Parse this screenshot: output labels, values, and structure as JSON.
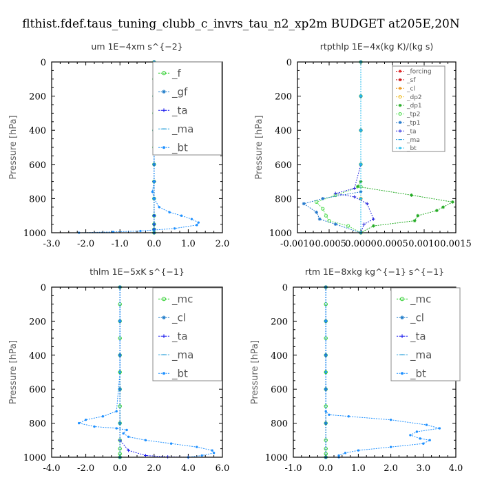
{
  "title": "flthist.fdef.taus_tuning_clubb_c_invrs_tau_n2_xp2m  BUDGET at205E,20N",
  "chart_data": [
    {
      "type": "line",
      "title": "um   1E−4xm s^{−2}",
      "ylabel": "Pressure [hPa]",
      "xlim": [
        -3,
        2
      ],
      "ylim": [
        1000,
        0
      ],
      "xticks": [
        "-3.0",
        "-2.0",
        "-1.0",
        "0.0",
        "1.0",
        "2.0"
      ],
      "xtick_values": [
        -3,
        -2,
        -1,
        0,
        1,
        2
      ],
      "yticks": [
        "0",
        "200",
        "400",
        "600",
        "800",
        "1000"
      ],
      "legend_placement": "top-right",
      "legend_font": 15,
      "series": [
        {
          "name": "_f",
          "color": "#22cc22",
          "marker": "circle",
          "x": [
            0.0,
            0.0,
            0.0,
            0.0,
            0.0,
            0.0,
            0.0,
            0.0,
            0.0,
            0.0,
            0.0,
            0.0,
            0.0
          ],
          "y": [
            0,
            100,
            200,
            300,
            400,
            500,
            600,
            700,
            800,
            900,
            950,
            980,
            1000
          ]
        },
        {
          "name": "_gf",
          "color": "#1e7bc8",
          "marker": "star",
          "x": [
            0.0,
            0.0,
            0.0,
            0.0,
            0.0,
            0.0,
            0.0,
            0.0,
            0.0,
            0.0,
            0.0,
            0.0,
            0.0
          ],
          "y": [
            0,
            100,
            200,
            300,
            400,
            500,
            600,
            700,
            800,
            900,
            950,
            980,
            1000
          ]
        },
        {
          "name": "_ta",
          "color": "#1a1aee",
          "marker": "plus",
          "x": [
            0.0,
            0.0,
            0.0,
            0.0,
            0.0,
            0.0,
            0.0,
            0.0,
            0.0,
            0.0
          ],
          "y": [
            0,
            200,
            400,
            600,
            700,
            800,
            900,
            950,
            980,
            1000
          ]
        },
        {
          "name": "_ma",
          "color": "#1e9bd8",
          "marker": "dash",
          "x": [
            0.0,
            0.0,
            0.0,
            0.0,
            0.0,
            0.0
          ],
          "y": [
            0,
            200,
            400,
            600,
            800,
            1000
          ]
        },
        {
          "name": "_bt",
          "color": "#1e90ff",
          "marker": "dot",
          "x": [
            0.0,
            0.0,
            0.0,
            0.0,
            -0.05,
            0.0,
            0.15,
            0.45,
            0.8,
            1.1,
            1.3,
            1.25,
            0.6,
            -0.4,
            -1.2,
            -2.2
          ],
          "y": [
            0,
            200,
            400,
            700,
            760,
            800,
            850,
            880,
            900,
            920,
            940,
            955,
            975,
            990,
            995,
            1000
          ]
        }
      ]
    },
    {
      "type": "line",
      "title": "rtpthlp   1E−4x(kg K)/(kg s)",
      "ylabel": "Pressure [hPa]",
      "xlim": [
        -0.001,
        0.0015
      ],
      "ylim": [
        1000,
        0
      ],
      "xticks": [
        "-0.0010",
        "-0.0005",
        "0.0000",
        "0.0005",
        "0.0010",
        "0.0015"
      ],
      "xtick_values": [
        -0.001,
        -0.0005,
        0,
        0.0005,
        0.001,
        0.0015
      ],
      "yticks": [
        "0",
        "200",
        "400",
        "600",
        "800",
        "1000"
      ],
      "legend_placement": "top-right",
      "legend_font": 9,
      "series": [
        {
          "name": "_forcing",
          "color": "#dd2222",
          "marker": "star",
          "x": [
            0,
            0,
            0,
            0,
            0,
            0
          ],
          "y": [
            0,
            200,
            400,
            600,
            800,
            1000
          ]
        },
        {
          "name": "_sf",
          "color": "#cc1111",
          "marker": "star",
          "x": [
            0,
            0,
            0,
            0,
            0,
            0
          ],
          "y": [
            0,
            200,
            400,
            600,
            800,
            1000
          ]
        },
        {
          "name": "_cl",
          "color": "#ee9922",
          "marker": "star",
          "x": [
            0,
            0,
            0,
            0,
            0,
            0
          ],
          "y": [
            0,
            200,
            400,
            600,
            800,
            1000
          ]
        },
        {
          "name": "_dp2",
          "color": "#eebb22",
          "marker": "circle",
          "x": [
            0,
            0,
            0,
            0,
            0,
            0
          ],
          "y": [
            0,
            200,
            400,
            600,
            800,
            1000
          ]
        },
        {
          "name": "_dp1",
          "color": "#22aa22",
          "marker": "star",
          "x": [
            0.0,
            0.0,
            0.0,
            0.0,
            0.0,
            -5e-05,
            0.0008,
            0.00145,
            0.0013,
            0.0012,
            0.0009,
            0.00085,
            0.0002,
            0.0
          ],
          "y": [
            0,
            200,
            400,
            600,
            700,
            730,
            780,
            820,
            850,
            870,
            900,
            930,
            960,
            1000
          ]
        },
        {
          "name": "_tp2",
          "color": "#55dd55",
          "marker": "circle",
          "x": [
            0.0,
            0.0,
            0.0,
            0.0,
            0.0,
            -0.0004,
            -0.0007,
            -0.0006,
            -0.00055,
            -0.0005,
            -0.0002,
            0.0
          ],
          "y": [
            0,
            200,
            400,
            600,
            730,
            780,
            820,
            860,
            900,
            930,
            960,
            1000
          ]
        },
        {
          "name": "_tp1",
          "color": "#2277cc",
          "marker": "star",
          "x": [
            0.0,
            0.0,
            0.0,
            0.0,
            0.0,
            -0.0006,
            -0.0009,
            -0.0007,
            -0.00065,
            -0.0004,
            0.0
          ],
          "y": [
            0,
            200,
            400,
            600,
            760,
            800,
            830,
            880,
            920,
            950,
            1000
          ]
        },
        {
          "name": "_ta",
          "color": "#2222dd",
          "marker": "plus",
          "x": [
            0.0,
            0.0,
            0.0,
            0.0,
            -0.0001,
            -0.0004,
            -0.0001,
            0.0001,
            0.0002,
            5e-05,
            0.0
          ],
          "y": [
            0,
            200,
            400,
            600,
            740,
            770,
            790,
            830,
            920,
            950,
            1000
          ]
        },
        {
          "name": "_ma",
          "color": "#2299dd",
          "marker": "dash",
          "x": [
            0,
            0,
            0,
            0,
            0,
            0
          ],
          "y": [
            0,
            200,
            400,
            600,
            800,
            1000
          ]
        },
        {
          "name": "_bt",
          "color": "#22bbee",
          "marker": "dot",
          "x": [
            0,
            0,
            0,
            0,
            0,
            0
          ],
          "y": [
            0,
            200,
            400,
            600,
            800,
            1000
          ]
        }
      ]
    },
    {
      "type": "line",
      "title": "thlm   1E−5xK s^{−1}",
      "ylabel": "Pressure [hPa]",
      "xlim": [
        -4,
        6
      ],
      "ylim": [
        1000,
        0
      ],
      "xticks": [
        "-4.0",
        "-2.0",
        "0.0",
        "2.0",
        "4.0",
        "6.0"
      ],
      "xtick_values": [
        -4,
        -2,
        0,
        2,
        4,
        6
      ],
      "yticks": [
        "0",
        "200",
        "400",
        "600",
        "800",
        "1000"
      ],
      "legend_placement": "top-right",
      "legend_font": 15,
      "series": [
        {
          "name": "_mc",
          "color": "#22cc22",
          "marker": "circle",
          "x": [
            0,
            0,
            0,
            0,
            0,
            0,
            0,
            0,
            0,
            0,
            0,
            0,
            0
          ],
          "y": [
            0,
            100,
            200,
            300,
            400,
            500,
            600,
            700,
            800,
            900,
            950,
            980,
            1000
          ]
        },
        {
          "name": "_cl",
          "color": "#1e7bc8",
          "marker": "star",
          "x": [
            0,
            0,
            0,
            0,
            0,
            0
          ],
          "y": [
            0,
            200,
            400,
            600,
            800,
            1000
          ]
        },
        {
          "name": "_ta",
          "color": "#1a1aee",
          "marker": "plus",
          "x": [
            0.0,
            0.0,
            0.0,
            0.0,
            0.0,
            0.5,
            1.5,
            2.8,
            4.0
          ],
          "y": [
            0,
            200,
            400,
            600,
            900,
            960,
            990,
            998,
            1000
          ]
        },
        {
          "name": "_ma",
          "color": "#1e9bd8",
          "marker": "dash",
          "x": [
            0,
            0,
            0,
            0,
            0,
            0
          ],
          "y": [
            0,
            200,
            400,
            600,
            800,
            1000
          ]
        },
        {
          "name": "_bt",
          "color": "#1e90ff",
          "marker": "dot",
          "x": [
            0.0,
            0.0,
            0.0,
            -0.2,
            -1.0,
            -2.0,
            -2.4,
            -1.5,
            -0.2,
            0.4,
            0.2,
            0.5,
            1.5,
            3.0,
            4.5,
            5.4,
            5.5,
            4.8,
            4.0
          ],
          "y": [
            0,
            200,
            500,
            730,
            760,
            780,
            800,
            820,
            830,
            840,
            860,
            880,
            900,
            920,
            940,
            960,
            975,
            990,
            1000
          ]
        }
      ]
    },
    {
      "type": "line",
      "title": "rtm   1E−8xkg kg^{−1} s^{−1}",
      "ylabel": "Pressure [hPa]",
      "xlim": [
        -1,
        4
      ],
      "ylim": [
        1000,
        0
      ],
      "xticks": [
        "-1.0",
        "0.0",
        "1.0",
        "2.0",
        "3.0",
        "4.0"
      ],
      "xtick_values": [
        -1,
        0,
        1,
        2,
        3,
        4
      ],
      "yticks": [
        "0",
        "200",
        "400",
        "600",
        "800",
        "1000"
      ],
      "legend_placement": "top-right",
      "legend_font": 15,
      "series": [
        {
          "name": "_mc",
          "color": "#22cc22",
          "marker": "circle",
          "x": [
            0,
            0,
            0,
            0,
            0,
            0,
            0,
            0,
            0,
            0,
            0,
            0,
            0
          ],
          "y": [
            0,
            100,
            200,
            300,
            400,
            500,
            600,
            700,
            800,
            900,
            950,
            980,
            1000
          ]
        },
        {
          "name": "_cl",
          "color": "#1e7bc8",
          "marker": "star",
          "x": [
            0,
            0,
            0,
            0,
            0,
            0
          ],
          "y": [
            0,
            200,
            400,
            600,
            800,
            1000
          ]
        },
        {
          "name": "_ta",
          "color": "#1a1aee",
          "marker": "plus",
          "x": [
            0,
            0,
            0,
            0,
            0,
            0
          ],
          "y": [
            0,
            200,
            400,
            600,
            800,
            1000
          ]
        },
        {
          "name": "_ma",
          "color": "#1e9bd8",
          "marker": "dash",
          "x": [
            0,
            0,
            0,
            0,
            0,
            0
          ],
          "y": [
            0,
            200,
            400,
            600,
            800,
            1000
          ]
        },
        {
          "name": "_bt",
          "color": "#1e90ff",
          "marker": "dot",
          "x": [
            0.0,
            0.0,
            0.0,
            0.0,
            0.1,
            0.7,
            2.0,
            3.1,
            3.5,
            2.8,
            2.6,
            2.9,
            3.2,
            3.0,
            2.0,
            1.0,
            0.6,
            0.4,
            0.4
          ],
          "y": [
            0,
            200,
            500,
            730,
            750,
            760,
            780,
            810,
            830,
            850,
            870,
            890,
            900,
            920,
            940,
            960,
            975,
            990,
            1000
          ]
        }
      ]
    }
  ]
}
